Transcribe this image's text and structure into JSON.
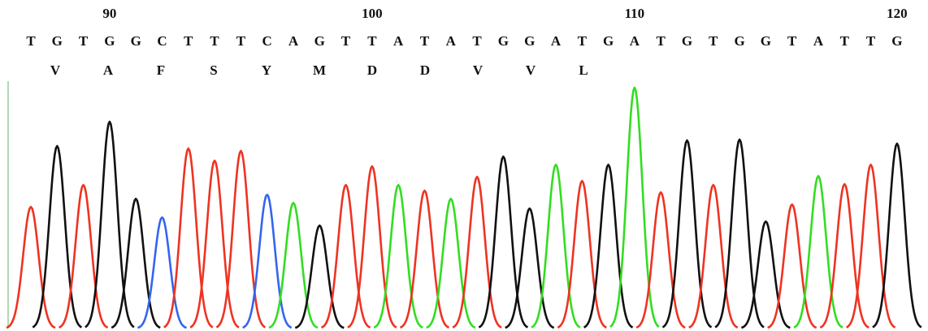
{
  "type": "chromatogram",
  "ruler": [
    "90",
    "100",
    "110",
    "120"
  ],
  "bases": [
    "T",
    "G",
    "T",
    "G",
    "G",
    "C",
    "T",
    "T",
    "T",
    "C",
    "A",
    "G",
    "T",
    "T",
    "A",
    "T",
    "A",
    "T",
    "G",
    "G",
    "A",
    "T",
    "G",
    "A",
    "T",
    "G",
    "T",
    "G",
    "G",
    "T",
    "A",
    "T",
    "T",
    "G"
  ],
  "amino_acids": [
    "V",
    "A",
    "F",
    "S",
    "Y",
    "M",
    "D",
    "D",
    "V",
    "V",
    "L"
  ],
  "peaks": [
    150,
    225,
    177,
    255,
    160,
    137,
    222,
    207,
    219,
    165,
    155,
    127,
    177,
    200,
    177,
    170,
    160,
    187,
    212,
    148,
    202,
    182,
    202,
    297,
    168,
    232,
    177,
    233,
    132,
    153,
    188,
    178,
    202,
    228
  ],
  "colors": {
    "A": "#33dd22",
    "C": "#3366ee",
    "G": "#111111",
    "T": "#ee3322"
  }
}
